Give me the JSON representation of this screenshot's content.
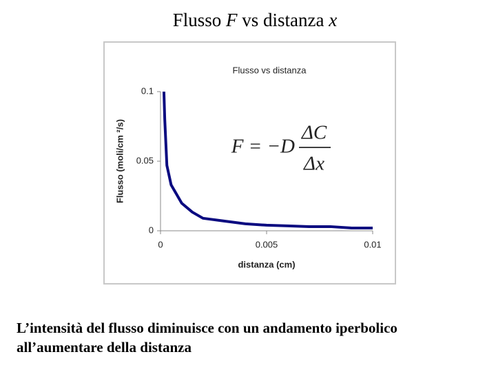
{
  "slide": {
    "title_parts": [
      "Flusso ",
      "F",
      " vs distanza ",
      "x"
    ],
    "caption_lines": [
      "L’intensità del flusso diminuisce con un andamento iperbolico",
      "all’aumentare della distanza"
    ]
  },
  "chart_data": {
    "type": "line",
    "title": "Flusso vs distanza",
    "x_label": "distanza (cm)",
    "y_label": "Flusso (moli/cm ²/s)",
    "formula": {
      "lhs": "F = −D",
      "numerator": "ΔC",
      "denominator": "Δx"
    },
    "x": [
      0.00016,
      0.0002,
      0.0003,
      0.0005,
      0.001,
      0.0015,
      0.002,
      0.003,
      0.004,
      0.005,
      0.006,
      0.007,
      0.008,
      0.009,
      0.01
    ],
    "values": [
      0.1,
      0.08,
      0.047,
      0.033,
      0.0198,
      0.0134,
      0.009,
      0.007,
      0.005,
      0.004,
      0.0035,
      0.003,
      0.003,
      0.002,
      0.002
    ],
    "color": "#0a0a80",
    "xlim": [
      0,
      0.01
    ],
    "xticks": [
      0,
      0.005,
      0.01
    ],
    "ylim": [
      0,
      0.1
    ],
    "yticks": [
      0,
      0.05,
      0.1
    ]
  }
}
